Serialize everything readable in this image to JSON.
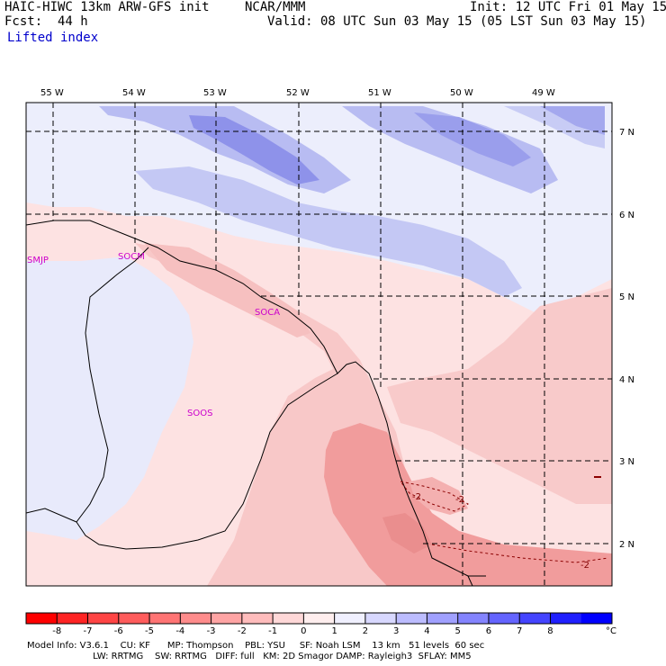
{
  "header": {
    "model": "HAIC-HIWC 13km ARW-GFS init",
    "org": "NCAR/MMM",
    "init": "Init: 12 UTC Fri 01 May 15",
    "fcst": "Fcst:  44 h",
    "valid": "Valid: 08 UTC Sun 03 May 15 (05 LST Sun 03 May 15)",
    "field": "Lifted index"
  },
  "map": {
    "lon_labels": [
      "55 W",
      "54 W",
      "53 W",
      "52 W",
      "51 W",
      "50 W",
      "49 W"
    ],
    "lat_labels": [
      "7 N",
      "6 N",
      "5 N",
      "4 N",
      "3 N",
      "2 N"
    ],
    "stations": [
      "SMJP",
      "SOCM",
      "SOCA",
      "SOOS"
    ],
    "contour_labels": [
      "-2",
      "-2",
      "-2"
    ],
    "colors": {
      "neg_strong": "#f0a0a0",
      "neg_mid": "#f8c4c4",
      "neg_light": "#fde2e2",
      "pos_light": "#e4e6fb",
      "pos_mid": "#b4b8f2",
      "pos_strong": "#8a8ee8"
    }
  },
  "colorbar": {
    "ticks": [
      "-8",
      "-7",
      "-6",
      "-5",
      "-4",
      "-3",
      "-2",
      "-1",
      "0",
      "1",
      "2",
      "3",
      "4",
      "5",
      "6",
      "7",
      "8"
    ],
    "unit": "°C",
    "colors": [
      "#ff0000",
      "#ff2424",
      "#ff4444",
      "#ff5c5c",
      "#ff7474",
      "#ff8c8c",
      "#ffa4a4",
      "#ffbcbc",
      "#ffd8d8",
      "#ffeeee",
      "#f0f0ff",
      "#d8d8ff",
      "#bcbcff",
      "#a0a0ff",
      "#8484ff",
      "#6464ff",
      "#4444ff",
      "#2020ff",
      "#0000ff"
    ]
  },
  "footer": {
    "line1": "Model Info: V3.6.1    CU: KF      MP: Thompson    PBL: YSU     SF: Noah LSM    13 km   51 levels  60 sec",
    "line2": "                       LW: RRTMG    SW: RRTMG   DIFF: full   KM: 2D Smagor DAMP: Rayleigh3  SFLAY: MM5"
  }
}
